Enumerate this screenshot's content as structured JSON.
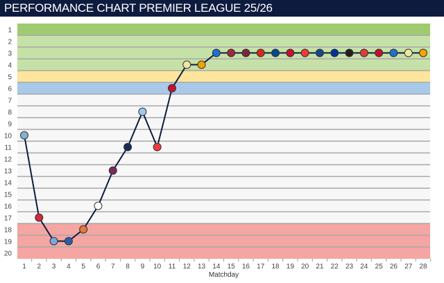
{
  "title": "PERFORMANCE CHART PREMIER LEAGUE 25/26",
  "chart_data": {
    "type": "line",
    "title": "PERFORMANCE CHART PREMIER LEAGUE 25/26",
    "xlabel": "Matchday",
    "ylabel": "",
    "x": [
      1,
      2,
      3,
      4,
      5,
      6,
      7,
      8,
      9,
      10,
      11,
      12,
      13,
      14,
      15,
      16,
      17,
      18,
      19,
      20,
      21,
      22,
      23,
      24,
      25,
      26,
      27,
      28
    ],
    "values": [
      10,
      17,
      19,
      19,
      18,
      16,
      13,
      11,
      8,
      11,
      6,
      4,
      4,
      3,
      3,
      3,
      3,
      3,
      3,
      3,
      3,
      3,
      3,
      3,
      3,
      3,
      3,
      3
    ],
    "ylim": [
      1,
      20
    ],
    "y_inverted": true,
    "yticks": [
      "1",
      "2",
      "3",
      "4",
      "5",
      "6",
      "7",
      "8",
      "9",
      "10",
      "11",
      "12",
      "13",
      "14",
      "15",
      "16",
      "17",
      "18",
      "19",
      "20"
    ],
    "xticks": [
      "1",
      "2",
      "3",
      "4",
      "5",
      "6",
      "7",
      "8",
      "9",
      "10",
      "11",
      "12",
      "13",
      "14",
      "15",
      "16",
      "17",
      "18",
      "19",
      "20",
      "21",
      "22",
      "23",
      "24",
      "25",
      "26",
      "27",
      "28"
    ],
    "bands": [
      {
        "from": 1,
        "to": 1,
        "color": "#9fcb6e"
      },
      {
        "from": 2,
        "to": 4,
        "color": "#c6e1a7"
      },
      {
        "from": 5,
        "to": 5,
        "color": "#fde59c"
      },
      {
        "from": 6,
        "to": 6,
        "color": "#a8c9ea"
      },
      {
        "from": 7,
        "to": 17,
        "color": "#f7f7f7"
      },
      {
        "from": 18,
        "to": 20,
        "color": "#f5a6a2"
      }
    ],
    "line_color": "#0d1b3e",
    "marker_colors": [
      "#7fb3d5",
      "#d7263d",
      "#7aa6e0",
      "#2a5db0",
      "#e07a3f",
      "#ffffff",
      "#7a2a5a",
      "#1a2a5a",
      "#9ec7ee",
      "#ef3b3b",
      "#c8102e",
      "#f2e6a0",
      "#f5a300",
      "#1f6fd1",
      "#a4263b",
      "#7a263a",
      "#da291c",
      "#034694",
      "#c8102e",
      "#ef3b3b",
      "#1b458f",
      "#003399",
      "#241f20",
      "#e03a3e",
      "#c8102e",
      "#1f6fd1",
      "#f2e6a0",
      "#f5a300"
    ],
    "grid": true,
    "legend": "none"
  }
}
